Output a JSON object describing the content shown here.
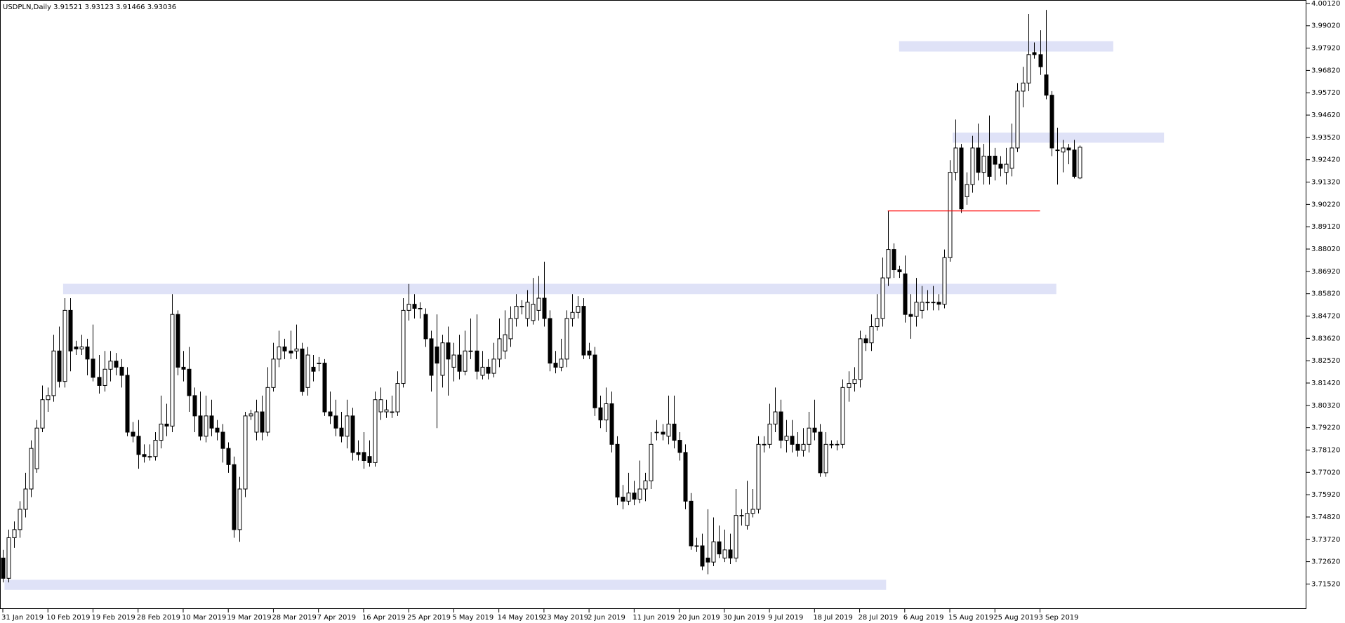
{
  "chart_data": {
    "type": "candlestick",
    "title": "USDPLN,Daily  3.91521 3.93123 3.91466 3.93036",
    "bull_color": "#ffffff",
    "bear_color": "#000000",
    "outline_color": "#000000",
    "ylim": [
      3.7029,
      4.0029
    ],
    "yticks": [
      {
        "value": 3.7152,
        "label": "3.71520"
      },
      {
        "value": 3.7262,
        "label": "3.72620"
      },
      {
        "value": 3.7372,
        "label": "3.73720"
      },
      {
        "value": 3.7482,
        "label": "3.74820"
      },
      {
        "value": 3.7592,
        "label": "3.75920"
      },
      {
        "value": 3.7702,
        "label": "3.77020"
      },
      {
        "value": 3.7812,
        "label": "3.78120"
      },
      {
        "value": 3.7922,
        "label": "3.79220"
      },
      {
        "value": 3.8032,
        "label": "3.80320"
      },
      {
        "value": 3.8142,
        "label": "3.81420"
      },
      {
        "value": 3.8252,
        "label": "3.82520"
      },
      {
        "value": 3.8362,
        "label": "3.83620"
      },
      {
        "value": 3.8472,
        "label": "3.84720"
      },
      {
        "value": 3.8582,
        "label": "3.85820"
      },
      {
        "value": 3.8692,
        "label": "3.86920"
      },
      {
        "value": 3.8802,
        "label": "3.88020"
      },
      {
        "value": 3.8912,
        "label": "3.89120"
      },
      {
        "value": 3.9022,
        "label": "3.90220"
      },
      {
        "value": 3.9132,
        "label": "3.91320"
      },
      {
        "value": 3.9242,
        "label": "3.92420"
      },
      {
        "value": 3.9352,
        "label": "3.93520"
      },
      {
        "value": 3.9462,
        "label": "3.94620"
      },
      {
        "value": 3.9572,
        "label": "3.95720"
      },
      {
        "value": 3.9682,
        "label": "3.96820"
      },
      {
        "value": 3.9792,
        "label": "3.97920"
      },
      {
        "value": 3.9902,
        "label": "3.99020"
      },
      {
        "value": 4.0012,
        "label": "4.00120"
      }
    ],
    "categories": [
      "31 Jan 2019",
      null,
      null,
      null,
      null,
      null,
      null,
      null,
      "10 Feb 2019",
      null,
      null,
      null,
      null,
      null,
      null,
      null,
      "19 Feb 2019",
      null,
      null,
      null,
      null,
      null,
      null,
      null,
      "28 Feb 2019",
      null,
      null,
      null,
      null,
      null,
      null,
      null,
      "10 Mar 2019",
      null,
      null,
      null,
      null,
      null,
      null,
      null,
      "19 Mar 2019",
      null,
      null,
      null,
      null,
      null,
      null,
      null,
      "28 Mar 2019",
      null,
      null,
      null,
      null,
      null,
      null,
      null,
      "7 Apr 2019",
      null,
      null,
      null,
      null,
      null,
      null,
      null,
      "16 Apr 2019",
      null,
      null,
      null,
      null,
      null,
      null,
      null,
      "25 Apr 2019",
      null,
      null,
      null,
      null,
      null,
      null,
      null,
      "5 May 2019",
      null,
      null,
      null,
      null,
      null,
      null,
      null,
      "14 May 2019",
      null,
      null,
      null,
      null,
      null,
      null,
      null,
      "23 May 2019",
      null,
      null,
      null,
      null,
      null,
      null,
      null,
      "2 Jun 2019",
      null,
      null,
      null,
      null,
      null,
      null,
      null,
      "11 Jun 2019",
      null,
      null,
      null,
      null,
      null,
      null,
      null,
      "20 Jun 2019",
      null,
      null,
      null,
      null,
      null,
      null,
      null,
      "30 Jun 2019",
      null,
      null,
      null,
      null,
      null,
      null,
      null,
      "9 Jul 2019",
      null,
      null,
      null,
      null,
      null,
      null,
      null,
      "18 Jul 2019",
      null,
      null,
      null,
      null,
      null,
      null,
      null,
      "28 Jul 2019",
      null,
      null,
      null,
      null,
      null,
      null,
      null,
      "6 Aug 2019",
      null,
      null,
      null,
      null,
      null,
      null,
      null,
      "15 Aug 2019",
      null,
      null,
      null,
      null,
      null,
      null,
      null,
      "25 Aug 2019",
      null,
      null,
      null,
      null,
      null,
      null,
      null,
      "3 Sep 2019",
      null,
      null,
      null,
      null,
      null,
      null,
      null
    ],
    "ohlc": [
      [
        3.728,
        3.732,
        3.716,
        3.718
      ],
      [
        3.718,
        3.742,
        3.716,
        3.738
      ],
      [
        3.738,
        3.746,
        3.733,
        3.742
      ],
      [
        3.742,
        3.756,
        3.738,
        3.752
      ],
      [
        3.752,
        3.77,
        3.748,
        3.762
      ],
      [
        3.762,
        3.786,
        3.758,
        3.782
      ],
      [
        3.772,
        3.796,
        3.77,
        3.792
      ],
      [
        3.792,
        3.813,
        3.79,
        3.806
      ],
      [
        3.806,
        3.812,
        3.8,
        3.808
      ],
      [
        3.808,
        3.838,
        3.805,
        3.83
      ],
      [
        3.83,
        3.842,
        3.812,
        3.815
      ],
      [
        3.815,
        3.856,
        3.812,
        3.85
      ],
      [
        3.85,
        3.856,
        3.82,
        3.83
      ],
      [
        3.832,
        3.835,
        3.828,
        3.831
      ],
      [
        3.831,
        3.838,
        3.828,
        3.832
      ],
      [
        3.832,
        3.836,
        3.818,
        3.826
      ],
      [
        3.826,
        3.843,
        3.815,
        3.817
      ],
      [
        3.817,
        3.828,
        3.809,
        3.813
      ],
      [
        3.813,
        3.83,
        3.81,
        3.821
      ],
      [
        3.821,
        3.83,
        3.815,
        3.825
      ],
      [
        3.825,
        3.829,
        3.818,
        3.822
      ],
      [
        3.822,
        3.826,
        3.812,
        3.818
      ],
      [
        3.818,
        3.822,
        3.788,
        3.79
      ],
      [
        3.79,
        3.795,
        3.785,
        3.788
      ],
      [
        3.788,
        3.796,
        3.772,
        3.779
      ],
      [
        3.779,
        3.784,
        3.775,
        3.778
      ],
      [
        3.778,
        3.784,
        3.776,
        3.778
      ],
      [
        3.778,
        3.79,
        3.776,
        3.786
      ],
      [
        3.786,
        3.808,
        3.782,
        3.794
      ],
      [
        3.794,
        3.804,
        3.788,
        3.793
      ],
      [
        3.793,
        3.858,
        3.79,
        3.848
      ],
      [
        3.848,
        3.85,
        3.818,
        3.822
      ],
      [
        3.822,
        3.83,
        3.815,
        3.821
      ],
      [
        3.821,
        3.832,
        3.8,
        3.808
      ],
      [
        3.808,
        3.812,
        3.79,
        3.798
      ],
      [
        3.798,
        3.81,
        3.786,
        3.788
      ],
      [
        3.788,
        3.808,
        3.785,
        3.798
      ],
      [
        3.798,
        3.806,
        3.788,
        3.792
      ],
      [
        3.792,
        3.796,
        3.786,
        3.79
      ],
      [
        3.79,
        3.794,
        3.775,
        3.782
      ],
      [
        3.782,
        3.785,
        3.77,
        3.774
      ],
      [
        3.774,
        3.778,
        3.738,
        3.742
      ],
      [
        3.742,
        3.768,
        3.736,
        3.762
      ],
      [
        3.762,
        3.8,
        3.758,
        3.798
      ],
      [
        3.798,
        3.801,
        3.796,
        3.799
      ],
      [
        3.79,
        3.806,
        3.786,
        3.8
      ],
      [
        3.8,
        3.808,
        3.786,
        3.79
      ],
      [
        3.79,
        3.822,
        3.788,
        3.812
      ],
      [
        3.812,
        3.834,
        3.81,
        3.826
      ],
      [
        3.826,
        3.84,
        3.822,
        3.832
      ],
      [
        3.832,
        3.836,
        3.826,
        3.83
      ],
      [
        3.83,
        3.84,
        3.826,
        3.829
      ],
      [
        3.83,
        3.843,
        3.826,
        3.831
      ],
      [
        3.831,
        3.834,
        3.808,
        3.81
      ],
      [
        3.812,
        3.832,
        3.808,
        3.828
      ],
      [
        3.822,
        3.828,
        3.815,
        3.82
      ],
      [
        3.824,
        3.827,
        3.82,
        3.824
      ],
      [
        3.824,
        3.826,
        3.798,
        3.8
      ],
      [
        3.8,
        3.81,
        3.794,
        3.798
      ],
      [
        3.798,
        3.806,
        3.788,
        3.792
      ],
      [
        3.792,
        3.8,
        3.785,
        3.788
      ],
      [
        3.788,
        3.806,
        3.782,
        3.798
      ],
      [
        3.798,
        3.802,
        3.776,
        3.78
      ],
      [
        3.78,
        3.786,
        3.776,
        3.779
      ],
      [
        3.78,
        3.79,
        3.772,
        3.776
      ],
      [
        3.778,
        3.786,
        3.773,
        3.775
      ],
      [
        3.775,
        3.81,
        3.773,
        3.806
      ],
      [
        3.8,
        3.812,
        3.796,
        3.806
      ],
      [
        3.8,
        3.806,
        3.797,
        3.801
      ],
      [
        3.8,
        3.808,
        3.797,
        3.8
      ],
      [
        3.8,
        3.82,
        3.798,
        3.814
      ],
      [
        3.814,
        3.856,
        3.812,
        3.85
      ],
      [
        3.85,
        3.863,
        3.845,
        3.853
      ],
      [
        3.853,
        3.858,
        3.846,
        3.851
      ],
      [
        3.851,
        3.854,
        3.846,
        3.851
      ],
      [
        3.848,
        3.851,
        3.832,
        3.836
      ],
      [
        3.836,
        3.84,
        3.81,
        3.818
      ],
      [
        3.832,
        3.848,
        3.792,
        3.824
      ],
      [
        3.818,
        3.838,
        3.812,
        3.834
      ],
      [
        3.834,
        3.842,
        3.808,
        3.826
      ],
      [
        3.822,
        3.834,
        3.815,
        3.828
      ],
      [
        3.828,
        3.838,
        3.816,
        3.82
      ],
      [
        3.82,
        3.84,
        3.818,
        3.83
      ],
      [
        3.83,
        3.846,
        3.826,
        3.83
      ],
      [
        3.83,
        3.848,
        3.816,
        3.82
      ],
      [
        3.818,
        3.83,
        3.816,
        3.822
      ],
      [
        3.822,
        3.826,
        3.816,
        3.819
      ],
      [
        3.819,
        3.834,
        3.817,
        3.826
      ],
      [
        3.826,
        3.846,
        3.822,
        3.836
      ],
      [
        3.83,
        3.85,
        3.826,
        3.838
      ],
      [
        3.836,
        3.852,
        3.832,
        3.846
      ],
      [
        3.846,
        3.858,
        3.842,
        3.852
      ],
      [
        3.852,
        3.855,
        3.848,
        3.852
      ],
      [
        3.846,
        3.86,
        3.842,
        3.854
      ],
      [
        3.845,
        3.866,
        3.843,
        3.853
      ],
      [
        3.85,
        3.867,
        3.845,
        3.856
      ],
      [
        3.856,
        3.874,
        3.842,
        3.846
      ],
      [
        3.846,
        3.85,
        3.82,
        3.824
      ],
      [
        3.824,
        3.83,
        3.819,
        3.822
      ],
      [
        3.822,
        3.836,
        3.82,
        3.826
      ],
      [
        3.826,
        3.85,
        3.822,
        3.846
      ],
      [
        3.846,
        3.858,
        3.842,
        3.849
      ],
      [
        3.849,
        3.857,
        3.846,
        3.852
      ],
      [
        3.852,
        3.856,
        3.826,
        3.828
      ],
      [
        3.83,
        3.834,
        3.826,
        3.828
      ],
      [
        3.828,
        3.832,
        3.798,
        3.802
      ],
      [
        3.802,
        3.808,
        3.792,
        3.796
      ],
      [
        3.796,
        3.812,
        3.79,
        3.804
      ],
      [
        3.804,
        3.81,
        3.78,
        3.784
      ],
      [
        3.784,
        3.788,
        3.754,
        3.758
      ],
      [
        3.758,
        3.764,
        3.752,
        3.756
      ],
      [
        3.756,
        3.77,
        3.754,
        3.76
      ],
      [
        3.76,
        3.766,
        3.754,
        3.757
      ],
      [
        3.757,
        3.776,
        3.755,
        3.762
      ],
      [
        3.762,
        3.77,
        3.756,
        3.766
      ],
      [
        3.766,
        3.79,
        3.762,
        3.784
      ],
      [
        3.79,
        3.796,
        3.786,
        3.79
      ],
      [
        3.79,
        3.794,
        3.786,
        3.789
      ],
      [
        3.788,
        3.808,
        3.784,
        3.794
      ],
      [
        3.794,
        3.808,
        3.782,
        3.786
      ],
      [
        3.786,
        3.79,
        3.776,
        3.78
      ],
      [
        3.78,
        3.784,
        3.752,
        3.756
      ],
      [
        3.756,
        3.76,
        3.732,
        3.734
      ],
      [
        3.734,
        3.738,
        3.731,
        3.734
      ],
      [
        3.734,
        3.74,
        3.722,
        3.724
      ],
      [
        3.728,
        3.752,
        3.72,
        3.726
      ],
      [
        3.726,
        3.748,
        3.724,
        3.736
      ],
      [
        3.736,
        3.744,
        3.728,
        3.73
      ],
      [
        3.728,
        3.742,
        3.726,
        3.732
      ],
      [
        3.732,
        3.74,
        3.725,
        3.728
      ],
      [
        3.728,
        3.762,
        3.726,
        3.749
      ],
      [
        3.749,
        3.752,
        3.744,
        3.749
      ],
      [
        3.744,
        3.766,
        3.742,
        3.75
      ],
      [
        3.75,
        3.762,
        3.748,
        3.752
      ],
      [
        3.752,
        3.788,
        3.75,
        3.784
      ],
      [
        3.784,
        3.788,
        3.78,
        3.784
      ],
      [
        3.784,
        3.804,
        3.782,
        3.794
      ],
      [
        3.794,
        3.812,
        3.79,
        3.8
      ],
      [
        3.8,
        3.806,
        3.782,
        3.786
      ],
      [
        3.786,
        3.796,
        3.78,
        3.788
      ],
      [
        3.788,
        3.796,
        3.78,
        3.784
      ],
      [
        3.784,
        3.79,
        3.778,
        3.781
      ],
      [
        3.781,
        3.792,
        3.778,
        3.784
      ],
      [
        3.784,
        3.8,
        3.78,
        3.792
      ],
      [
        3.792,
        3.806,
        3.786,
        3.79
      ],
      [
        3.79,
        3.794,
        3.768,
        3.77
      ],
      [
        3.77,
        3.79,
        3.768,
        3.784
      ],
      [
        3.784,
        3.786,
        3.782,
        3.784
      ],
      [
        3.784,
        3.786,
        3.781,
        3.784
      ],
      [
        3.784,
        3.816,
        3.782,
        3.812
      ],
      [
        3.812,
        3.82,
        3.805,
        3.814
      ],
      [
        3.814,
        3.822,
        3.81,
        3.816
      ],
      [
        3.816,
        3.84,
        3.812,
        3.836
      ],
      [
        3.836,
        3.838,
        3.83,
        3.834
      ],
      [
        3.834,
        3.848,
        3.83,
        3.842
      ],
      [
        3.842,
        3.858,
        3.84,
        3.846
      ],
      [
        3.846,
        3.876,
        3.842,
        3.866
      ],
      [
        3.866,
        3.899,
        3.862,
        3.88
      ],
      [
        3.88,
        3.883,
        3.866,
        3.87
      ],
      [
        3.87,
        3.872,
        3.866,
        3.869
      ],
      [
        3.868,
        3.877,
        3.844,
        3.848
      ],
      [
        3.848,
        3.858,
        3.836,
        3.847
      ],
      [
        3.847,
        3.866,
        3.842,
        3.854
      ],
      [
        3.85,
        3.862,
        3.846,
        3.854
      ],
      [
        3.854,
        3.86,
        3.85,
        3.854
      ],
      [
        3.854,
        3.862,
        3.85,
        3.854
      ],
      [
        3.854,
        3.858,
        3.85,
        3.853
      ],
      [
        3.853,
        3.88,
        3.851,
        3.876
      ],
      [
        3.876,
        3.924,
        3.874,
        3.918
      ],
      [
        3.918,
        3.944,
        3.914,
        3.93
      ],
      [
        3.93,
        3.932,
        3.898,
        3.9
      ],
      [
        3.906,
        3.918,
        3.902,
        3.912
      ],
      [
        3.912,
        3.936,
        3.908,
        3.93
      ],
      [
        3.93,
        3.942,
        3.914,
        3.918
      ],
      [
        3.918,
        3.932,
        3.912,
        3.926
      ],
      [
        3.926,
        3.946,
        3.912,
        3.916
      ],
      [
        3.926,
        3.93,
        3.914,
        3.922
      ],
      [
        3.922,
        3.926,
        3.916,
        3.92
      ],
      [
        3.918,
        3.93,
        3.912,
        3.922
      ],
      [
        3.92,
        3.942,
        3.916,
        3.93
      ],
      [
        3.93,
        3.962,
        3.928,
        3.958
      ],
      [
        3.958,
        3.97,
        3.95,
        3.962
      ],
      [
        3.962,
        3.996,
        3.958,
        3.976
      ],
      [
        3.977,
        3.982,
        3.974,
        3.976
      ],
      [
        3.976,
        3.988,
        3.966,
        3.97
      ],
      [
        3.966,
        3.998,
        3.954,
        3.956
      ],
      [
        3.956,
        3.958,
        3.926,
        3.93
      ],
      [
        3.929,
        3.94,
        3.912,
        3.929
      ],
      [
        3.928,
        3.934,
        3.918,
        3.93
      ],
      [
        3.93,
        3.932,
        3.922,
        3.929
      ],
      [
        3.929,
        3.934,
        3.915,
        3.916
      ],
      [
        3.91521,
        3.93123,
        3.91466,
        3.93036
      ]
    ],
    "zones": [
      {
        "from": 10.7,
        "to": 186.9,
        "low": 3.858,
        "high": 3.8631,
        "color": "#dfe2f7"
      },
      {
        "from": 0.3,
        "to": 156.7,
        "low": 3.7123,
        "high": 3.7173,
        "color": "#dfe2f7"
      },
      {
        "from": 159,
        "to": 197,
        "low": 3.9775,
        "high": 3.9826,
        "color": "#dfe2f7"
      },
      {
        "from": 168.5,
        "to": 206,
        "low": 3.9326,
        "high": 3.9376,
        "color": "#dfe2f7"
      }
    ],
    "levels": [
      {
        "from": 157,
        "to": 184,
        "value": 3.899,
        "color": "#ff0000"
      }
    ]
  }
}
